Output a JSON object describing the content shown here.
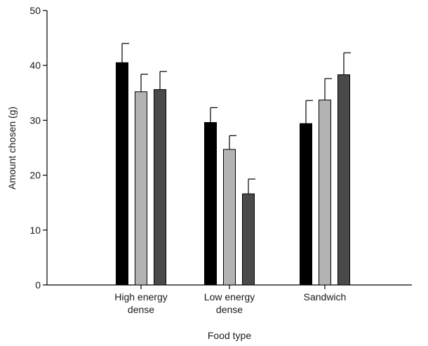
{
  "chart_data": {
    "type": "bar",
    "title": "",
    "xlabel": "Food type",
    "ylabel": "Amount chosen (g)",
    "ylim": [
      0,
      50
    ],
    "yticks": [
      0,
      10,
      20,
      30,
      40,
      50
    ],
    "categories": [
      [
        "High energy",
        "dense"
      ],
      [
        "Low energy",
        "dense"
      ],
      [
        "Sandwich"
      ]
    ],
    "series": [
      {
        "values": [
          40.5,
          29.6,
          29.4
        ],
        "errors": [
          3.5,
          2.7,
          4.2
        ],
        "color": "#000000"
      },
      {
        "values": [
          35.2,
          24.7,
          33.7
        ],
        "errors": [
          3.2,
          2.5,
          3.9
        ],
        "color": "#b3b3b3"
      },
      {
        "values": [
          35.6,
          16.6,
          38.3
        ],
        "errors": [
          3.3,
          2.7,
          4.0
        ],
        "color": "#4a4a4a"
      }
    ],
    "error_bars": true,
    "grid": false,
    "legend": "none"
  }
}
